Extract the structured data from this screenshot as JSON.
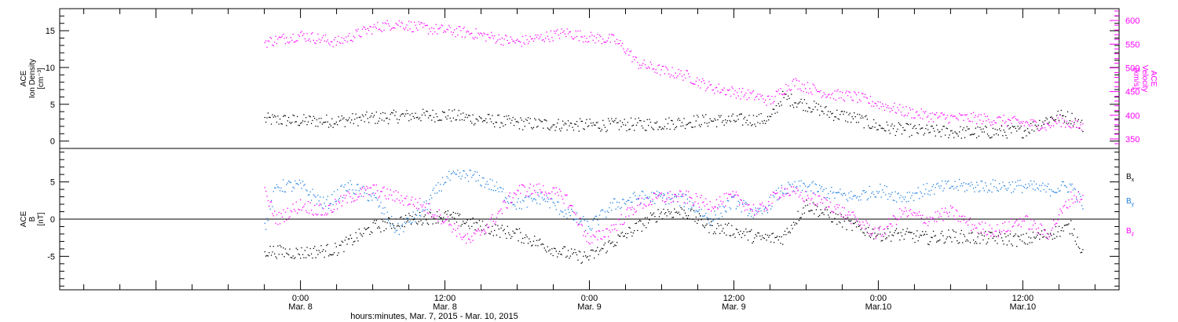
{
  "chart_data": [
    {
      "type": "scatter",
      "panel": "top",
      "ylabel_left": [
        "ACE",
        "Ion Density",
        "[cm⁻³]"
      ],
      "ylabel_right": [
        "ACE",
        "Velocity",
        "[km/s]"
      ],
      "y_left_ticks": [
        "0",
        "5",
        "10",
        "15"
      ],
      "y_right_ticks": [
        "350",
        "400",
        "450",
        "500",
        "550",
        "600"
      ],
      "ylim_left": [
        -1,
        18
      ],
      "ylim_right": [
        330,
        625
      ],
      "xlim_hours": [
        -20,
        68
      ],
      "grid": false,
      "colors": {
        "density": "#000000",
        "velocity": "#ff00ff"
      },
      "series": [
        {
          "key": "density",
          "axis": "left",
          "x": [
            -3,
            0,
            3,
            6,
            9,
            12,
            15,
            18,
            21,
            24,
            27,
            30,
            33,
            36,
            39,
            40,
            42,
            44,
            46,
            48,
            50,
            52,
            54,
            56,
            58,
            60,
            62,
            63,
            64,
            65
          ],
          "values": [
            3.0,
            2.8,
            2.8,
            3.2,
            3.5,
            3.6,
            3.0,
            2.5,
            2.3,
            2.2,
            2.3,
            2.4,
            2.8,
            2.9,
            3.0,
            6.0,
            5.0,
            3.8,
            3.2,
            2.0,
            1.6,
            1.4,
            1.3,
            1.2,
            1.3,
            1.4,
            3.0,
            3.5,
            3.2,
            2.0
          ]
        },
        {
          "key": "velocity",
          "axis": "right",
          "x": [
            -3,
            0,
            3,
            6,
            8,
            10,
            12,
            14,
            16,
            18,
            20,
            22,
            24,
            26,
            27,
            28,
            30,
            32,
            34,
            36,
            38,
            39,
            40,
            41,
            42,
            44,
            46,
            48,
            50,
            52,
            54,
            56,
            58,
            60,
            62,
            63,
            64,
            65
          ],
          "values": [
            555,
            570,
            555,
            585,
            595,
            585,
            580,
            575,
            565,
            555,
            565,
            575,
            565,
            560,
            540,
            510,
            495,
            485,
            460,
            450,
            440,
            430,
            455,
            470,
            460,
            445,
            440,
            425,
            410,
            400,
            395,
            395,
            390,
            385,
            378,
            390,
            382,
            375
          ]
        }
      ]
    },
    {
      "type": "scatter",
      "panel": "bottom",
      "ylabel_left": [
        "ACE",
        "B",
        "[nT]"
      ],
      "y_left_ticks": [
        "-5",
        "0",
        "5"
      ],
      "ylim_left": [
        -9.5,
        9.5
      ],
      "zero_line": true,
      "xlim_hours": [
        -20,
        68
      ],
      "grid": false,
      "colors": {
        "bx": "#000000",
        "by": "#1e7fe0",
        "bz": "#ff00ff"
      },
      "legend": [
        {
          "key": "bx",
          "label": "B",
          "sub": "x"
        },
        {
          "key": "by",
          "label": "B",
          "sub": "y"
        },
        {
          "key": "bz",
          "label": "B",
          "sub": "z"
        }
      ],
      "legend_position": "right",
      "series": [
        {
          "key": "bx",
          "x": [
            -3,
            0,
            3,
            6,
            9,
            12,
            15,
            18,
            21,
            23,
            24,
            26,
            28,
            30,
            32,
            34,
            36,
            38,
            40,
            42,
            44,
            46,
            48,
            50,
            52,
            54,
            56,
            58,
            60,
            62,
            64,
            65
          ],
          "values": [
            -4.2,
            -4.5,
            -4.0,
            -1.0,
            0.0,
            0.5,
            -1.0,
            -2.0,
            -4.0,
            -5.0,
            -5.0,
            -3.0,
            -1.0,
            1.0,
            1.0,
            -1.0,
            -1.5,
            -2.5,
            -2.5,
            2.0,
            0.5,
            -1.0,
            -2.0,
            -2.0,
            -2.5,
            -2.2,
            -2.5,
            -2.5,
            -2.8,
            -2.0,
            -1.0,
            -4.5
          ]
        },
        {
          "key": "by",
          "x": [
            -3,
            -2,
            0,
            2,
            4,
            6,
            8,
            10,
            12,
            14,
            16,
            18,
            20,
            22,
            24,
            26,
            28,
            30,
            32,
            34,
            36,
            38,
            40,
            42,
            44,
            46,
            48,
            50,
            52,
            54,
            56,
            58,
            60,
            62,
            64,
            65
          ],
          "values": [
            -1.0,
            4.5,
            4.5,
            2.0,
            4.5,
            3.0,
            -1.5,
            1.0,
            5.5,
            6.0,
            4.5,
            2.0,
            3.0,
            1.0,
            -1.0,
            2.0,
            3.0,
            3.0,
            2.5,
            0.0,
            2.5,
            0.5,
            4.0,
            4.5,
            3.5,
            3.0,
            4.0,
            3.0,
            4.0,
            4.5,
            4.5,
            4.5,
            4.5,
            4.0,
            4.5,
            2.0
          ]
        },
        {
          "key": "bz",
          "x": [
            -3,
            -2,
            0,
            2,
            4,
            6,
            8,
            10,
            12,
            14,
            16,
            18,
            20,
            22,
            24,
            26,
            28,
            30,
            32,
            34,
            36,
            38,
            40,
            42,
            44,
            46,
            48,
            50,
            52,
            54,
            56,
            58,
            60,
            62,
            64,
            65
          ],
          "values": [
            3.5,
            0.0,
            2.0,
            1.0,
            3.0,
            4.0,
            3.0,
            2.0,
            0.0,
            -3.0,
            0.0,
            4.0,
            4.0,
            3.0,
            -3.0,
            -1.0,
            2.0,
            3.0,
            3.0,
            2.0,
            3.0,
            1.0,
            4.0,
            3.0,
            2.0,
            0.0,
            -2.0,
            1.0,
            0.0,
            1.0,
            -1.0,
            -1.5,
            0.0,
            -2.0,
            3.0,
            3.0
          ]
        }
      ]
    }
  ],
  "x_axis": {
    "ticks": [
      {
        "hours": 0,
        "time": "0:00",
        "day": "Mar. 8"
      },
      {
        "hours": 12,
        "time": "12:00",
        "day": "Mar. 8"
      },
      {
        "hours": 24,
        "time": "0:00",
        "day": "Mar. 9"
      },
      {
        "hours": 36,
        "time": "12:00",
        "day": "Mar. 9"
      },
      {
        "hours": 48,
        "time": "0:00",
        "day": "Mar.10"
      },
      {
        "hours": 60,
        "time": "12:00",
        "day": "Mar.10"
      }
    ],
    "label": "hours:minutes, Mar.  7, 2015 - Mar. 10, 2015"
  }
}
